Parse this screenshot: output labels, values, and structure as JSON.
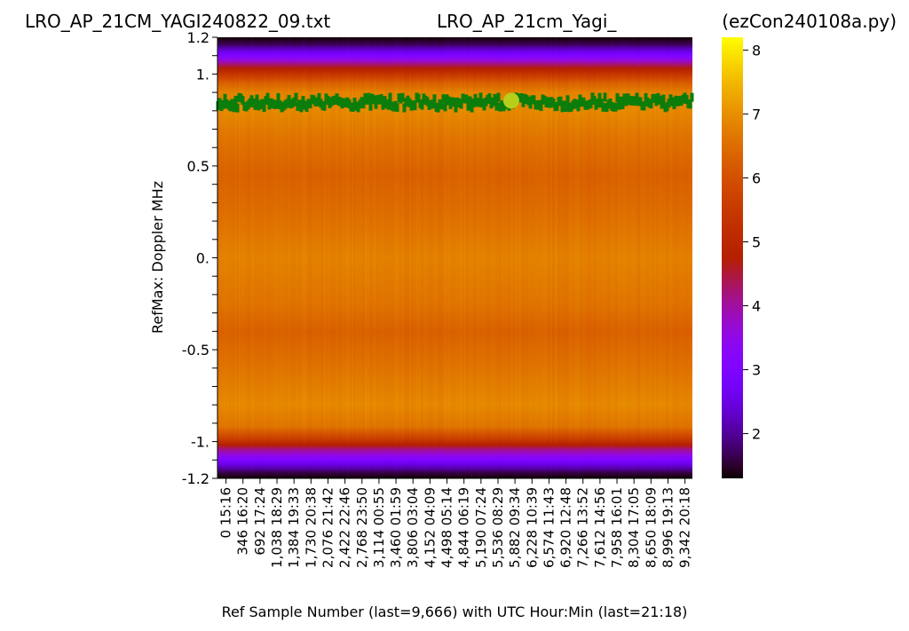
{
  "header": {
    "left_title": "LRO_AP_21CM_YAGI240822_09.txt",
    "center_title": "LRO_AP_21cm_Yagi_",
    "right_title": "(ezCon240108a.py)"
  },
  "chart_data": {
    "type": "heatmap",
    "colormap": "gnuplot",
    "ylabel": "RefMax:  Doppler MHz",
    "xlabel": "Ref Sample Number (last=9,666) with UTC Hour:Min (last=21:18)",
    "ylim": [
      -1.2,
      1.2
    ],
    "y_ticks": [
      {
        "value": 1.2,
        "label": "1.2"
      },
      {
        "value": 1.0,
        "label": "1."
      },
      {
        "value": 0.5,
        "label": "0.5"
      },
      {
        "value": 0.0,
        "label": "0."
      },
      {
        "value": -0.5,
        "label": "-0.5"
      },
      {
        "value": -1.0,
        "label": "-1."
      },
      {
        "value": -1.2,
        "label": "-1.2"
      }
    ],
    "x_ticks": [
      {
        "sample": 0,
        "label": "0 15:16"
      },
      {
        "sample": 346,
        "label": "346 16:20"
      },
      {
        "sample": 692,
        "label": "692 17:24"
      },
      {
        "sample": 1038,
        "label": "1,038 18:29"
      },
      {
        "sample": 1384,
        "label": "1,384 19:33"
      },
      {
        "sample": 1730,
        "label": "1,730 20:38"
      },
      {
        "sample": 2076,
        "label": "2,076 21:42"
      },
      {
        "sample": 2422,
        "label": "2,422 22:46"
      },
      {
        "sample": 2768,
        "label": "2,768 23:50"
      },
      {
        "sample": 3114,
        "label": "3,114 00:55"
      },
      {
        "sample": 3460,
        "label": "3,460 01:59"
      },
      {
        "sample": 3806,
        "label": "3,806 03:04"
      },
      {
        "sample": 4152,
        "label": "4,152 04:09"
      },
      {
        "sample": 4498,
        "label": "4,498 05:14"
      },
      {
        "sample": 4844,
        "label": "4,844 06:19"
      },
      {
        "sample": 5190,
        "label": "5,190 07:24"
      },
      {
        "sample": 5536,
        "label": "5,536 08:29"
      },
      {
        "sample": 5882,
        "label": "5,882 09:34"
      },
      {
        "sample": 6228,
        "label": "6,228 10:39"
      },
      {
        "sample": 6574,
        "label": "6,574 11:43"
      },
      {
        "sample": 6920,
        "label": "6,920 12:48"
      },
      {
        "sample": 7266,
        "label": "7,266 13:52"
      },
      {
        "sample": 7612,
        "label": "7,612 14:56"
      },
      {
        "sample": 7958,
        "label": "7,958 16:01"
      },
      {
        "sample": 8304,
        "label": "8,304 17:05"
      },
      {
        "sample": 8650,
        "label": "8,650 18:09"
      },
      {
        "sample": 8996,
        "label": "8,996 19:13"
      },
      {
        "sample": 9342,
        "label": "9,342 20:18"
      }
    ],
    "x_range": [
      0,
      9666
    ],
    "value_profile": [
      {
        "y": 1.2,
        "v": 1.3
      },
      {
        "y": 1.16,
        "v": 1.7
      },
      {
        "y": 1.12,
        "v": 2.6
      },
      {
        "y": 1.08,
        "v": 3.5
      },
      {
        "y": 1.05,
        "v": 4.3
      },
      {
        "y": 1.02,
        "v": 5.0
      },
      {
        "y": 0.99,
        "v": 5.6
      },
      {
        "y": 0.95,
        "v": 6.3
      },
      {
        "y": 0.9,
        "v": 6.8
      },
      {
        "y": 0.8,
        "v": 6.9
      },
      {
        "y": 0.65,
        "v": 6.6
      },
      {
        "y": 0.45,
        "v": 6.3
      },
      {
        "y": 0.25,
        "v": 6.5
      },
      {
        "y": 0.0,
        "v": 6.8
      },
      {
        "y": -0.25,
        "v": 6.6
      },
      {
        "y": -0.4,
        "v": 6.3
      },
      {
        "y": -0.6,
        "v": 6.6
      },
      {
        "y": -0.8,
        "v": 6.9
      },
      {
        "y": -0.92,
        "v": 6.6
      },
      {
        "y": -0.98,
        "v": 5.7
      },
      {
        "y": -1.01,
        "v": 5.0
      },
      {
        "y": -1.04,
        "v": 4.2
      },
      {
        "y": -1.08,
        "v": 3.4
      },
      {
        "y": -1.13,
        "v": 2.4
      },
      {
        "y": -1.17,
        "v": 1.6
      },
      {
        "y": -1.2,
        "v": 1.3
      }
    ],
    "colorbar": {
      "range": [
        1.3,
        8.2
      ],
      "ticks": [
        {
          "value": 2,
          "label": "2"
        },
        {
          "value": 3,
          "label": "3"
        },
        {
          "value": 4,
          "label": "4"
        },
        {
          "value": 5,
          "label": "5"
        },
        {
          "value": 6,
          "label": "6"
        },
        {
          "value": 7,
          "label": "7"
        },
        {
          "value": 8,
          "label": "8"
        }
      ]
    },
    "max_trace": {
      "color": "#0b7d0b",
      "y_center": 0.845,
      "y_jitter": 0.03,
      "highlight": {
        "sample": 5980,
        "y": 0.855,
        "color": "#b6cf1b"
      }
    }
  }
}
